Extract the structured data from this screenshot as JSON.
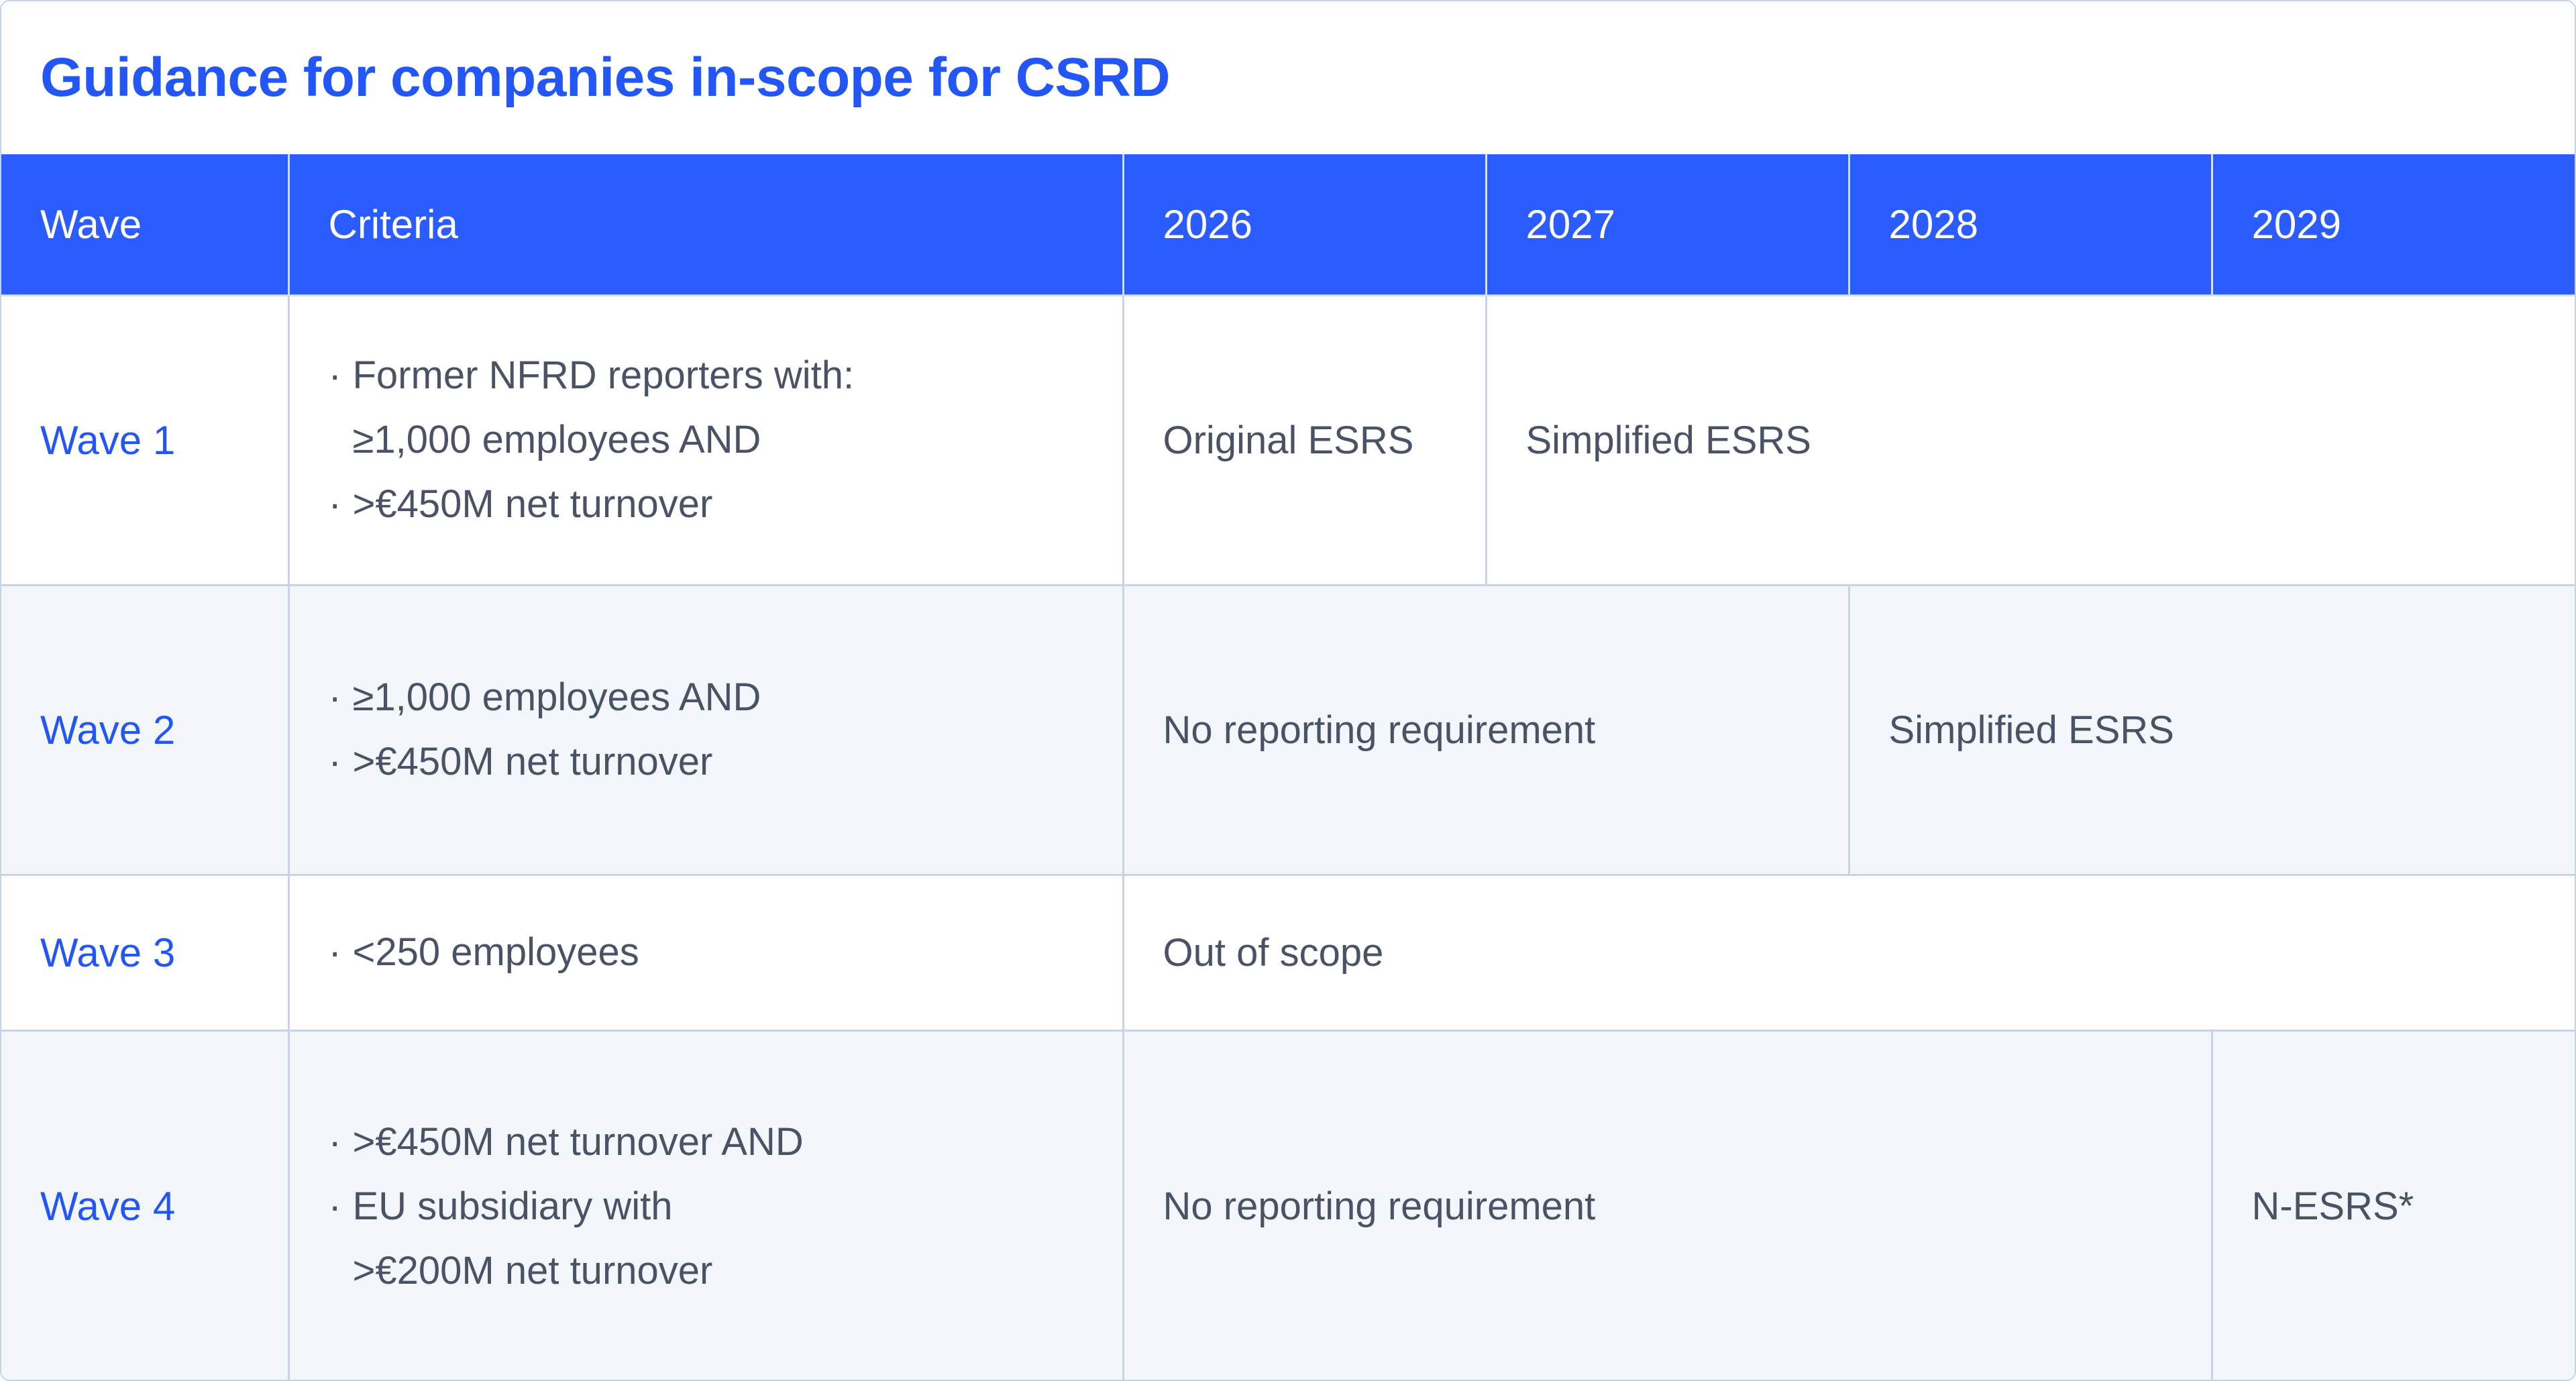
{
  "title": "Guidance for companies in-scope for CSRD",
  "colors": {
    "accent": "#2356f6",
    "header_bg": "#2b5cff",
    "border": "#c7d3ea",
    "alt_row_bg": "#f3f6fb",
    "body_text": "#4a5366"
  },
  "table": {
    "headers": [
      "Wave",
      "Criteria",
      "2026",
      "2027",
      "2028",
      "2029"
    ],
    "rows": [
      {
        "wave": "Wave 1",
        "criteria": [
          {
            "text": "Former NFRD reporters with:",
            "bullet": true
          },
          {
            "text": "≥1,000 employees AND",
            "bullet": false
          },
          {
            "text": ">€450M net turnover",
            "bullet": true
          }
        ],
        "cells": [
          {
            "text": "Original ESRS",
            "span": 1
          },
          {
            "text": "Simplified ESRS",
            "span": 3
          }
        ]
      },
      {
        "wave": "Wave 2",
        "criteria": [
          {
            "text": "≥1,000 employees AND",
            "bullet": true
          },
          {
            "text": ">€450M net turnover",
            "bullet": true
          }
        ],
        "cells": [
          {
            "text": "No reporting requirement",
            "span": 2
          },
          {
            "text": "Simplified ESRS",
            "span": 2
          }
        ]
      },
      {
        "wave": "Wave 3",
        "criteria": [
          {
            "text": "<250 employees",
            "bullet": true
          }
        ],
        "cells": [
          {
            "text": "Out of scope",
            "span": 4
          }
        ]
      },
      {
        "wave": "Wave 4",
        "criteria": [
          {
            "text": ">€450M net turnover AND",
            "bullet": true
          },
          {
            "text": "EU subsidiary with",
            "bullet": true
          },
          {
            "text": ">€200M net turnover",
            "bullet": false
          }
        ],
        "cells": [
          {
            "text": "No reporting requirement",
            "span": 3
          },
          {
            "text": "N-ESRS*",
            "span": 1
          }
        ]
      }
    ]
  }
}
